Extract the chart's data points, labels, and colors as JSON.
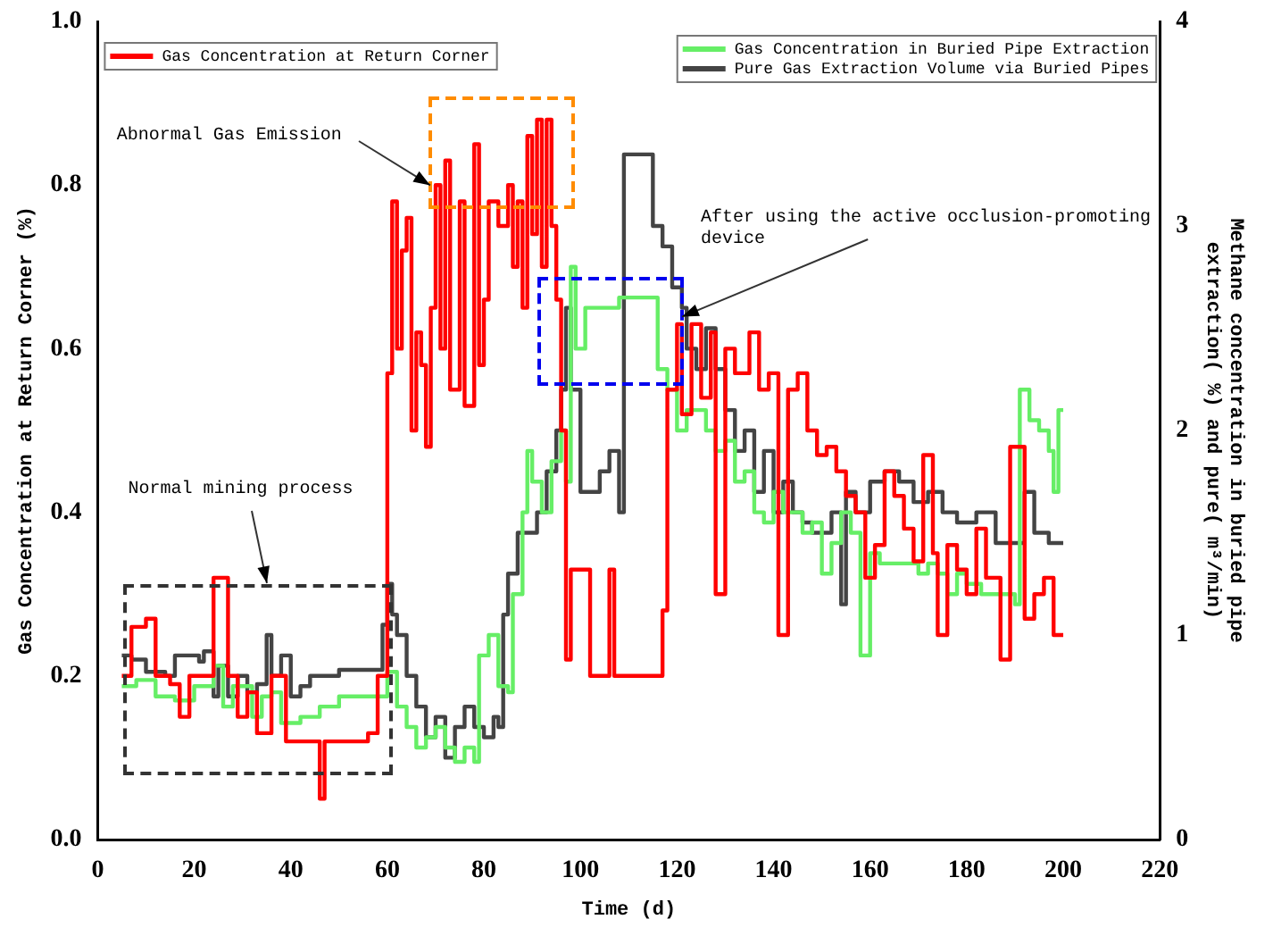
{
  "chart_data": {
    "type": "step",
    "xlabel": "Time (d)",
    "ylabel": "Gas Concentration at Return Corner (%)",
    "y2label": "Methane concentration in buried pipe extraction( %) and pure( m³/min)",
    "xlim": [
      0,
      220
    ],
    "xticks": [
      0,
      20,
      40,
      60,
      80,
      100,
      120,
      140,
      160,
      180,
      200,
      220
    ],
    "ylim": [
      0,
      1
    ],
    "yticks": [
      {
        "value": 0,
        "label": "0.0"
      },
      {
        "value": 0.2,
        "label": "0.2"
      },
      {
        "value": 0.4,
        "label": "0.4"
      },
      {
        "value": 0.6,
        "label": "0.6"
      },
      {
        "value": 0.8,
        "label": "0.8"
      },
      {
        "value": 1,
        "label": "1.0"
      }
    ],
    "y2lim": [
      0,
      4
    ],
    "y2ticks": [
      0,
      1,
      2,
      3,
      4
    ],
    "legend": "top",
    "grid": false,
    "marker": "none",
    "line_style": "solid",
    "annotations": [
      {
        "text": "Abnormal Gas Emission",
        "x": 69,
        "y": 0.8
      },
      "Normal mining process",
      {
        "text": "After using the active occlusion-promoting device",
        "x": 121,
        "y": 0.64
      }
    ],
    "series": [
      {
        "name": "Gas Concentration at Return Corner",
        "color": "#ff0000",
        "type": "step",
        "x": [
          5,
          7,
          10,
          12,
          15,
          17,
          19,
          22,
          24,
          27,
          29,
          31,
          33,
          36,
          39,
          42,
          46,
          47,
          52,
          56,
          58,
          60,
          61,
          62,
          63,
          64,
          65,
          66,
          67,
          68,
          69,
          70,
          71,
          72,
          73,
          75,
          76,
          78,
          79,
          80,
          81,
          83,
          85,
          86,
          87,
          88,
          89,
          90,
          91,
          92,
          93,
          94,
          95,
          96,
          97,
          98,
          100,
          102,
          106,
          107,
          112,
          116,
          117,
          118,
          120,
          121,
          123,
          125,
          127,
          128,
          130,
          132,
          135,
          137,
          139,
          141,
          143,
          145,
          147,
          149,
          151,
          153,
          155,
          157,
          159,
          161,
          163,
          165,
          167,
          169,
          171,
          173,
          174,
          176,
          178,
          180,
          182,
          184,
          187,
          189,
          192,
          194,
          196,
          198,
          200
        ],
        "values": [
          0.2,
          0.26,
          0.27,
          0.2,
          0.19,
          0.15,
          0.2,
          0.2,
          0.32,
          0.2,
          0.15,
          0.18,
          0.13,
          0.2,
          0.12,
          0.12,
          0.05,
          0.12,
          0.12,
          0.13,
          0.2,
          0.57,
          0.78,
          0.6,
          0.72,
          0.76,
          0.5,
          0.62,
          0.58,
          0.48,
          0.65,
          0.8,
          0.6,
          0.83,
          0.55,
          0.78,
          0.53,
          0.85,
          0.58,
          0.66,
          0.78,
          0.75,
          0.8,
          0.7,
          0.78,
          0.65,
          0.86,
          0.74,
          0.88,
          0.7,
          0.88,
          0.75,
          0.66,
          0.5,
          0.22,
          0.33,
          0.33,
          0.2,
          0.33,
          0.2,
          0.2,
          0.2,
          0.28,
          0.55,
          0.63,
          0.52,
          0.63,
          0.54,
          0.62,
          0.3,
          0.6,
          0.57,
          0.62,
          0.55,
          0.57,
          0.25,
          0.55,
          0.57,
          0.5,
          0.47,
          0.48,
          0.45,
          0.42,
          0.4,
          0.32,
          0.36,
          0.45,
          0.42,
          0.38,
          0.34,
          0.47,
          0.35,
          0.25,
          0.36,
          0.33,
          0.3,
          0.38,
          0.32,
          0.22,
          0.48,
          0.27,
          0.3,
          0.32,
          0.25,
          0.25
        ]
      },
      {
        "name": "Gas Concentration in Buried Pipe Extraction",
        "color": "#66ee66",
        "type": "step",
        "axis": "y2",
        "x": [
          5,
          8,
          12,
          16,
          20,
          24,
          26,
          28,
          32,
          34,
          36,
          38,
          42,
          46,
          50,
          55,
          58,
          60,
          62,
          64,
          66,
          68,
          70,
          72,
          74,
          76,
          78,
          79,
          81,
          83,
          85,
          86,
          88,
          89,
          90,
          92,
          94,
          96,
          97,
          98,
          99,
          101,
          105,
          108,
          116,
          118,
          120,
          122,
          124,
          126,
          128,
          130,
          132,
          134,
          136,
          138,
          140,
          142,
          144,
          146,
          148,
          150,
          152,
          154,
          156,
          158,
          160,
          162,
          165,
          170,
          172,
          174,
          176,
          178,
          180,
          183,
          186,
          190,
          191,
          193,
          195,
          197,
          198,
          199,
          200
        ],
        "values": [
          0.75,
          0.78,
          0.7,
          0.68,
          0.75,
          0.85,
          0.65,
          0.75,
          0.6,
          0.7,
          0.72,
          0.57,
          0.6,
          0.65,
          0.7,
          0.7,
          0.7,
          0.82,
          0.65,
          0.55,
          0.45,
          0.5,
          0.55,
          0.45,
          0.38,
          0.45,
          0.38,
          0.9,
          1.0,
          0.75,
          0.72,
          1.2,
          1.6,
          1.9,
          1.75,
          1.6,
          1.85,
          2.0,
          1.75,
          2.8,
          2.4,
          2.6,
          2.6,
          2.65,
          2.3,
          2.2,
          2.0,
          2.1,
          2.1,
          2.0,
          1.9,
          1.95,
          1.75,
          1.8,
          1.6,
          1.55,
          1.7,
          1.6,
          1.6,
          1.5,
          1.55,
          1.3,
          1.45,
          1.6,
          1.5,
          0.9,
          1.4,
          1.35,
          1.35,
          1.3,
          1.35,
          1.3,
          1.2,
          1.3,
          1.25,
          1.2,
          1.2,
          1.15,
          2.2,
          2.05,
          2.0,
          1.9,
          1.7,
          2.1,
          2.1
        ]
      },
      {
        "name": "Pure Gas Extraction Volume via Buried Pipes",
        "color": "#444444",
        "type": "step",
        "axis": "y2",
        "x": [
          5,
          7,
          10,
          14,
          16,
          21,
          22,
          24,
          25,
          27,
          29,
          31,
          33,
          35,
          36,
          38,
          40,
          42,
          44,
          50,
          54,
          58,
          59,
          60,
          61,
          62,
          64,
          66,
          68,
          70,
          72,
          74,
          76,
          78,
          80,
          82,
          83,
          84,
          85,
          87,
          89,
          91,
          93,
          95,
          96,
          97,
          98,
          100,
          104,
          106,
          108,
          109,
          114,
          115,
          117,
          119,
          121,
          122,
          124,
          126,
          128,
          130,
          132,
          134,
          136,
          138,
          140,
          142,
          144,
          146,
          148,
          150,
          152,
          154,
          155,
          157,
          160,
          163,
          166,
          169,
          172,
          175,
          178,
          182,
          186,
          190,
          192,
          194,
          197,
          200
        ],
        "values": [
          0.9,
          0.88,
          0.82,
          0.8,
          0.9,
          0.87,
          0.92,
          0.7,
          0.85,
          0.7,
          0.8,
          0.72,
          0.76,
          1.0,
          0.8,
          0.9,
          0.7,
          0.75,
          0.8,
          0.83,
          0.83,
          0.83,
          1.05,
          1.25,
          1.1,
          1.0,
          0.8,
          0.65,
          0.5,
          0.6,
          0.4,
          0.55,
          0.65,
          0.55,
          0.5,
          0.6,
          0.55,
          1.1,
          1.3,
          1.5,
          1.5,
          1.6,
          1.8,
          2.0,
          2.2,
          2.6,
          2.2,
          1.7,
          1.8,
          1.9,
          1.6,
          3.35,
          3.35,
          3.0,
          2.9,
          2.7,
          2.6,
          2.4,
          2.3,
          2.5,
          2.3,
          2.1,
          1.9,
          2.0,
          1.7,
          1.9,
          1.6,
          1.75,
          1.6,
          1.55,
          1.5,
          1.5,
          1.6,
          1.15,
          1.7,
          1.6,
          1.75,
          1.8,
          1.75,
          1.65,
          1.7,
          1.6,
          1.55,
          1.6,
          1.45,
          1.45,
          1.7,
          1.5,
          1.45,
          1.45
        ]
      }
    ]
  }
}
